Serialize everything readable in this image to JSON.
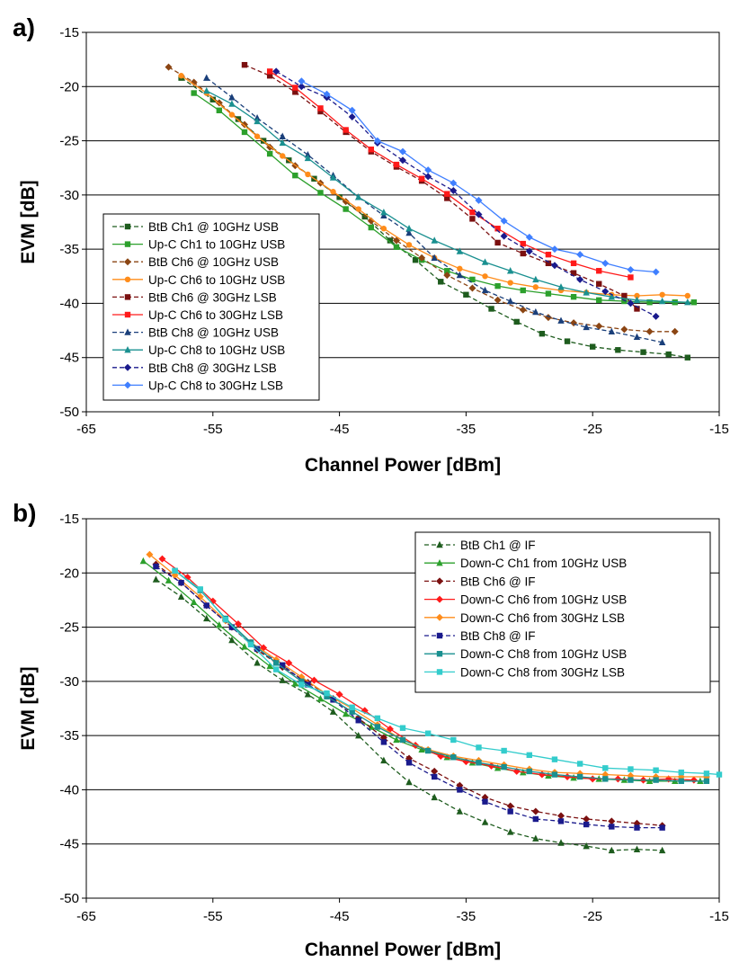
{
  "chart_data": [
    {
      "type": "line",
      "panel_label": "a)",
      "xlabel": "Channel Power [dBm]",
      "ylabel": "EVM [dB]",
      "xlim": [
        -65,
        -15
      ],
      "ylim": [
        -50,
        -15
      ],
      "x_ticks": [
        "-65",
        "-55",
        "-45",
        "-35",
        "-25",
        "-15"
      ],
      "y_ticks": [
        "-15",
        "-20",
        "-25",
        "-30",
        "-35",
        "-40",
        "-45",
        "-50"
      ],
      "grid": "horizontal",
      "legend_position": "bottom-left",
      "series": [
        {
          "name": "BtB Ch1 @ 10GHz USB",
          "color": "#1e5c1e",
          "dashed": true,
          "marker": "square",
          "x": [
            -57.5,
            -55,
            -53,
            -51,
            -49,
            -47,
            -45,
            -43,
            -41,
            -39,
            -37,
            -35,
            -33,
            -31,
            -29,
            -27,
            -25,
            -23,
            -21,
            -19,
            -17.5
          ],
          "y": [
            -19.2,
            -21.2,
            -23,
            -25,
            -26.8,
            -28.5,
            -30.2,
            -32,
            -34.2,
            -36,
            -38,
            -39.2,
            -40.5,
            -41.7,
            -42.8,
            -43.5,
            -44,
            -44.3,
            -44.5,
            -44.7,
            -45
          ]
        },
        {
          "name": "Up-C Ch1 to 10GHz USB",
          "color": "#2ca02c",
          "dashed": false,
          "marker": "square",
          "x": [
            -56.5,
            -54.5,
            -52.5,
            -50.5,
            -48.5,
            -46.5,
            -44.5,
            -42.5,
            -40.5,
            -38.5,
            -36.5,
            -34.5,
            -32.5,
            -30.5,
            -28.5,
            -26.5,
            -24.5,
            -22.5,
            -20.5,
            -18.5,
            -17
          ],
          "y": [
            -20.6,
            -22.2,
            -24.2,
            -26.2,
            -28.2,
            -29.8,
            -31.3,
            -33,
            -34.8,
            -36,
            -37,
            -37.8,
            -38.4,
            -38.8,
            -39.1,
            -39.4,
            -39.7,
            -39.8,
            -39.9,
            -39.9,
            -39.9
          ]
        },
        {
          "name": "BtB Ch6 @ 10GHz USB",
          "color": "#8b4513",
          "dashed": true,
          "marker": "diamond",
          "x": [
            -58.5,
            -56.5,
            -54.5,
            -52.5,
            -50.5,
            -48.5,
            -46.5,
            -44.5,
            -42.5,
            -40.5,
            -38.5,
            -36.5,
            -34.5,
            -32.5,
            -30.5,
            -28.5,
            -26.5,
            -24.5,
            -22.5,
            -20.5,
            -18.5
          ],
          "y": [
            -18.2,
            -19.6,
            -21.5,
            -23.5,
            -25.6,
            -27.3,
            -28.9,
            -30.6,
            -32.4,
            -34.2,
            -35.8,
            -37.4,
            -38.6,
            -39.7,
            -40.6,
            -41.3,
            -41.8,
            -42.1,
            -42.4,
            -42.6,
            -42.6
          ]
        },
        {
          "name": "Up-C Ch6 to 10GHz USB",
          "color": "#ff8c1a",
          "dashed": false,
          "marker": "circle",
          "x": [
            -57.5,
            -55.5,
            -53.5,
            -51.5,
            -49.5,
            -47.5,
            -45.5,
            -43.5,
            -41.5,
            -39.5,
            -37.5,
            -35.5,
            -33.5,
            -31.5,
            -29.5,
            -27.5,
            -25.5,
            -23.5,
            -21.5,
            -19.5,
            -17.5
          ],
          "y": [
            -19,
            -20.6,
            -22.6,
            -24.6,
            -26.4,
            -28.1,
            -29.7,
            -31.3,
            -33.1,
            -34.6,
            -35.8,
            -36.8,
            -37.5,
            -38.1,
            -38.5,
            -38.8,
            -39,
            -39.2,
            -39.3,
            -39.2,
            -39.3
          ]
        },
        {
          "name": "BtB Ch6 @ 30GHz LSB",
          "color": "#7b1010",
          "dashed": true,
          "marker": "square",
          "x": [
            -52.5,
            -50.5,
            -48.5,
            -46.5,
            -44.5,
            -42.5,
            -40.5,
            -38.5,
            -36.5,
            -34.5,
            -32.5,
            -30.5,
            -28.5,
            -26.5,
            -24.5,
            -22.5,
            -21.5
          ],
          "y": [
            -18,
            -19,
            -20.5,
            -22.3,
            -24.2,
            -26,
            -27.4,
            -28.7,
            -30.3,
            -32.2,
            -34.4,
            -35.4,
            -36.3,
            -37.2,
            -38.2,
            -39.3,
            -40.5
          ]
        },
        {
          "name": "Up-C Ch6 to 30GHz LSB",
          "color": "#ff1a1a",
          "dashed": false,
          "marker": "square",
          "x": [
            -50.5,
            -48.5,
            -46.5,
            -44.5,
            -42.5,
            -40.5,
            -38.5,
            -36.5,
            -34.5,
            -32.5,
            -30.5,
            -28.5,
            -26.5,
            -24.5,
            -22
          ],
          "y": [
            -18.6,
            -20.1,
            -22,
            -24,
            -25.8,
            -27.2,
            -28.5,
            -29.9,
            -31.6,
            -33.1,
            -34.5,
            -35.5,
            -36.3,
            -37,
            -37.6
          ]
        },
        {
          "name": "BtB Ch8 @ 10GHz USB",
          "color": "#1a3f7a",
          "dashed": true,
          "marker": "triangle",
          "x": [
            -55.5,
            -53.5,
            -51.5,
            -49.5,
            -47.5,
            -45.5,
            -43.5,
            -41.5,
            -39.5,
            -37.5,
            -35.5,
            -33.5,
            -31.5,
            -29.5,
            -27.5,
            -25.5,
            -23.5,
            -21.5,
            -19.5
          ],
          "y": [
            -19.2,
            -21,
            -22.9,
            -24.6,
            -26.3,
            -28.2,
            -30.2,
            -31.9,
            -33.5,
            -35.8,
            -37.4,
            -38.8,
            -39.8,
            -40.8,
            -41.6,
            -42.2,
            -42.6,
            -43.1,
            -43.6
          ]
        },
        {
          "name": "Up-C Ch8 to 10GHz USB",
          "color": "#1a9090",
          "dashed": false,
          "marker": "triangle",
          "x": [
            -55.5,
            -53.5,
            -51.5,
            -49.5,
            -47.5,
            -45.5,
            -43.5,
            -41.5,
            -39.5,
            -37.5,
            -35.5,
            -33.5,
            -31.5,
            -29.5,
            -27.5,
            -25.5,
            -23.5,
            -21.5,
            -19.5,
            -17.5
          ],
          "y": [
            -20.4,
            -21.6,
            -23.2,
            -25.2,
            -26.6,
            -28.4,
            -30.2,
            -31.6,
            -33.1,
            -34.2,
            -35.2,
            -36.2,
            -37,
            -37.8,
            -38.5,
            -39,
            -39.4,
            -39.7,
            -39.8,
            -39.9
          ]
        },
        {
          "name": "BtB Ch8 @ 30GHz LSB",
          "color": "#1a1a8c",
          "dashed": true,
          "marker": "diamond",
          "x": [
            -50,
            -48,
            -46,
            -44,
            -42,
            -40,
            -38,
            -36,
            -34,
            -32,
            -30,
            -28,
            -26,
            -24,
            -22,
            -20
          ],
          "y": [
            -18.6,
            -20,
            -21,
            -22.8,
            -25.2,
            -26.8,
            -28.3,
            -29.6,
            -31.8,
            -33.8,
            -35.2,
            -36.5,
            -37.8,
            -38.9,
            -40,
            -41.2
          ]
        },
        {
          "name": "Up-C Ch8 to 30GHz LSB",
          "color": "#3f7fff",
          "dashed": false,
          "marker": "diamond",
          "x": [
            -48,
            -46,
            -44,
            -42,
            -40,
            -38,
            -36,
            -34,
            -32,
            -30,
            -28,
            -26,
            -24,
            -22,
            -20
          ],
          "y": [
            -19.5,
            -20.7,
            -22.2,
            -25,
            -26,
            -27.7,
            -28.9,
            -30.5,
            -32.4,
            -33.9,
            -35,
            -35.5,
            -36.3,
            -36.9,
            -37.1
          ]
        }
      ]
    },
    {
      "type": "line",
      "panel_label": "b)",
      "xlabel": "Channel Power [dBm]",
      "ylabel": "EVM [dB]",
      "xlim": [
        -65,
        -15
      ],
      "ylim": [
        -50,
        -15
      ],
      "x_ticks": [
        "-65",
        "-55",
        "-45",
        "-35",
        "-25",
        "-15"
      ],
      "y_ticks": [
        "-15",
        "-20",
        "-25",
        "-30",
        "-35",
        "-40",
        "-45",
        "-50"
      ],
      "grid": "horizontal",
      "legend_position": "top-right",
      "series": [
        {
          "name": "BtB Ch1 @ IF",
          "color": "#1e5c1e",
          "dashed": true,
          "marker": "triangle",
          "x": [
            -59.5,
            -57.5,
            -55.5,
            -53.5,
            -51.5,
            -49.5,
            -47.5,
            -45.5,
            -43.5,
            -41.5,
            -39.5,
            -37.5,
            -35.5,
            -33.5,
            -31.5,
            -29.5,
            -27.5,
            -25.5,
            -23.5,
            -21.5,
            -19.5
          ],
          "y": [
            -20.6,
            -22.2,
            -24.2,
            -26.2,
            -28.3,
            -29.9,
            -31.2,
            -32.8,
            -35,
            -37.3,
            -39.3,
            -40.7,
            -42,
            -43,
            -43.9,
            -44.5,
            -44.9,
            -45.2,
            -45.6,
            -45.5,
            -45.6
          ]
        },
        {
          "name": "Down-C Ch1 from 10GHz USB",
          "color": "#2ca02c",
          "dashed": false,
          "marker": "triangle",
          "x": [
            -60.5,
            -58.5,
            -56.5,
            -54.5,
            -52.5,
            -50.5,
            -48.5,
            -46.5,
            -44.5,
            -42.5,
            -40.5,
            -38.5,
            -36.5,
            -34.5,
            -32.5,
            -30.5,
            -28.5,
            -26.5,
            -24.5,
            -22.5,
            -20.5,
            -18.5,
            -16.5
          ],
          "y": [
            -18.9,
            -20.7,
            -22.7,
            -24.8,
            -26.8,
            -28.6,
            -30.2,
            -31.6,
            -33,
            -34.2,
            -35.4,
            -36.3,
            -37,
            -37.5,
            -38,
            -38.4,
            -38.7,
            -38.9,
            -39,
            -39.1,
            -39.2,
            -39.2,
            -39.2
          ]
        },
        {
          "name": "BtB Ch6 @ IF",
          "color": "#7b1010",
          "dashed": true,
          "marker": "diamond",
          "x": [
            -59.5,
            -57.5,
            -55.5,
            -53.5,
            -51.5,
            -49.5,
            -47.5,
            -45.5,
            -43.5,
            -41.5,
            -39.5,
            -37.5,
            -35.5,
            -33.5,
            -31.5,
            -29.5,
            -27.5,
            -25.5,
            -23.5,
            -21.5,
            -19.5
          ],
          "y": [
            -19.2,
            -20.9,
            -23,
            -25,
            -27.1,
            -28.7,
            -30.1,
            -31.6,
            -33.4,
            -35.2,
            -37.1,
            -38.3,
            -39.6,
            -40.7,
            -41.5,
            -42,
            -42.4,
            -42.7,
            -42.9,
            -43.1,
            -43.3
          ]
        },
        {
          "name": "Down-C Ch6 from 10GHz USB",
          "color": "#ff1a1a",
          "dashed": false,
          "marker": "diamond",
          "x": [
            -59,
            -57,
            -55,
            -53,
            -51,
            -49,
            -47,
            -45,
            -43,
            -41,
            -39,
            -37,
            -35,
            -33,
            -31,
            -29,
            -27,
            -25,
            -23,
            -21,
            -19,
            -17
          ],
          "y": [
            -18.7,
            -20.4,
            -22.6,
            -24.7,
            -26.9,
            -28.3,
            -29.9,
            -31.2,
            -32.7,
            -34.4,
            -35.9,
            -36.9,
            -37.4,
            -37.8,
            -38.3,
            -38.6,
            -38.8,
            -39,
            -39,
            -39.1,
            -39,
            -39.1
          ]
        },
        {
          "name": "Down-C Ch6 from 30GHz LSB",
          "color": "#ff8c1a",
          "dashed": false,
          "marker": "diamond",
          "x": [
            -60,
            -58,
            -56,
            -54,
            -52,
            -50,
            -48,
            -46,
            -44,
            -42,
            -40,
            -38,
            -36,
            -34,
            -32,
            -30,
            -28,
            -26,
            -24,
            -22,
            -20,
            -18,
            -16
          ],
          "y": [
            -18.3,
            -20.2,
            -22.2,
            -24.4,
            -26.4,
            -28,
            -29.6,
            -31.2,
            -32.5,
            -34,
            -35.4,
            -36.3,
            -36.9,
            -37.3,
            -37.7,
            -38.1,
            -38.4,
            -38.5,
            -38.6,
            -38.7,
            -38.8,
            -38.8,
            -38.8
          ]
        },
        {
          "name": "BtB Ch8 @ IF",
          "color": "#1a1a8c",
          "dashed": true,
          "marker": "square",
          "x": [
            -59.5,
            -57.5,
            -55.5,
            -53.5,
            -51.5,
            -49.5,
            -47.5,
            -45.5,
            -43.5,
            -41.5,
            -39.5,
            -37.5,
            -35.5,
            -33.5,
            -31.5,
            -29.5,
            -27.5,
            -25.5,
            -23.5,
            -21.5,
            -19.5
          ],
          "y": [
            -19.4,
            -20.9,
            -23,
            -25,
            -27,
            -28.5,
            -30.3,
            -31.7,
            -33.6,
            -35.6,
            -37.5,
            -38.8,
            -40,
            -41.1,
            -42,
            -42.7,
            -42.9,
            -43.2,
            -43.4,
            -43.5,
            -43.5
          ]
        },
        {
          "name": "Down-C Ch8 from 10GHz USB",
          "color": "#1a9090",
          "dashed": false,
          "marker": "square",
          "x": [
            -58,
            -56,
            -54,
            -52,
            -50,
            -48,
            -46,
            -44,
            -42,
            -40,
            -38,
            -36,
            -34,
            -32,
            -30,
            -28,
            -26,
            -24,
            -22,
            -20,
            -18,
            -16
          ],
          "y": [
            -19.8,
            -21.6,
            -24.2,
            -26.4,
            -28.3,
            -30,
            -31.4,
            -32.8,
            -34.2,
            -35.4,
            -36.4,
            -37,
            -37.5,
            -37.9,
            -38.3,
            -38.6,
            -38.8,
            -39,
            -39.1,
            -39.1,
            -39.2,
            -39.2
          ]
        },
        {
          "name": "Down-C Ch8 from 30GHz LSB",
          "color": "#33cccc",
          "dashed": false,
          "marker": "square",
          "x": [
            -58,
            -56,
            -54,
            -52,
            -50,
            -48,
            -46,
            -44,
            -42,
            -40,
            -38,
            -36,
            -34,
            -32,
            -30,
            -28,
            -26,
            -24,
            -22,
            -20,
            -18,
            -16,
            -15
          ],
          "y": [
            -19.8,
            -21.5,
            -24.3,
            -26.6,
            -28.9,
            -30.3,
            -31.1,
            -32.4,
            -33.4,
            -34.3,
            -34.8,
            -35.4,
            -36.1,
            -36.4,
            -36.8,
            -37.2,
            -37.6,
            -38,
            -38.1,
            -38.2,
            -38.4,
            -38.5,
            -38.6
          ]
        }
      ]
    }
  ]
}
